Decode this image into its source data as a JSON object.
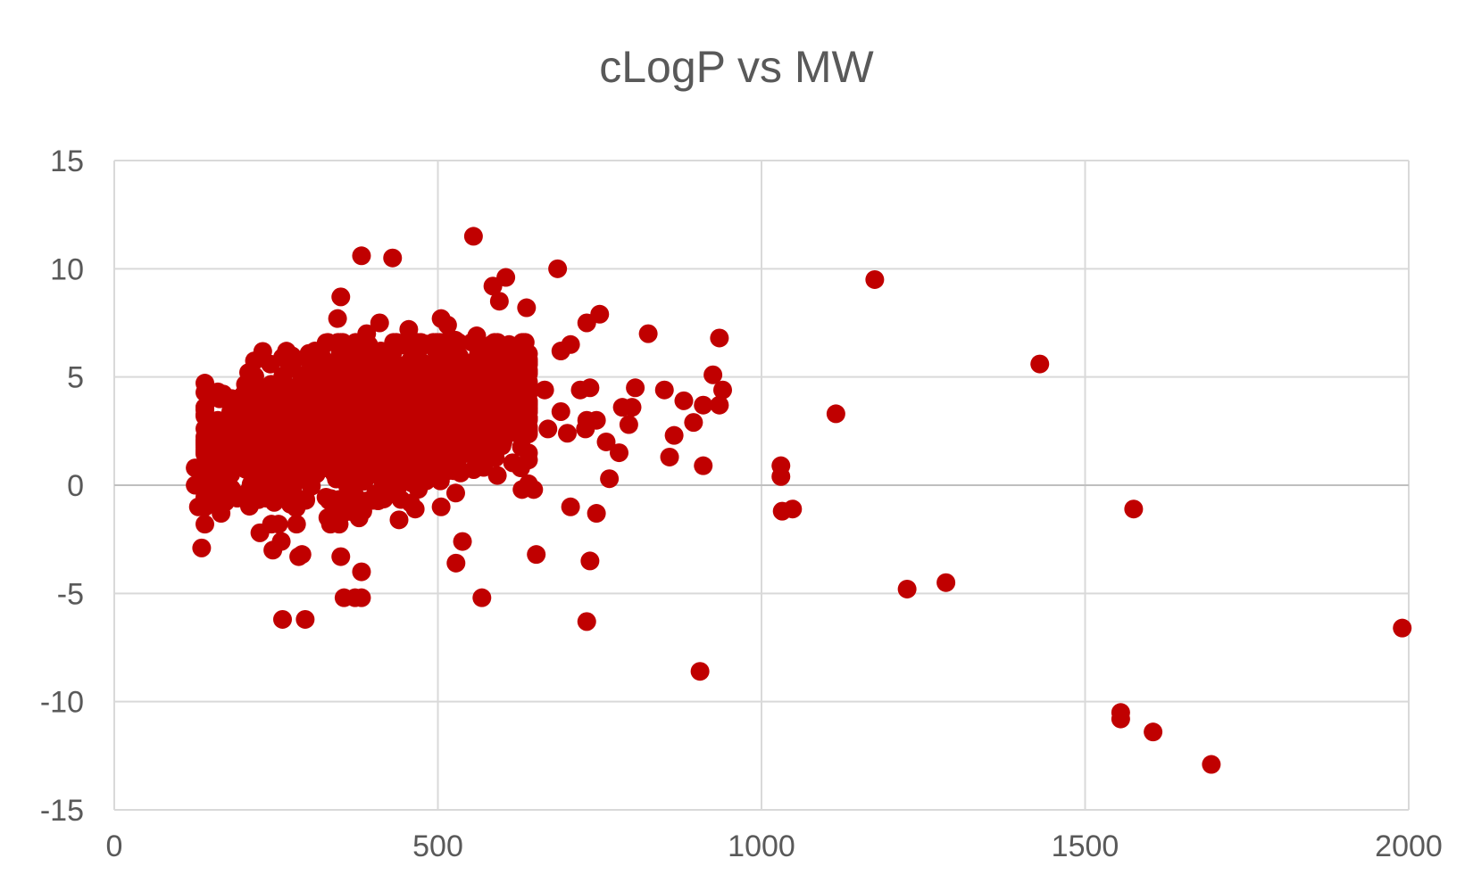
{
  "chart_data": {
    "type": "scatter",
    "title": "cLogP vs MW",
    "xlabel": "",
    "ylabel": "",
    "xlim": [
      0,
      2000
    ],
    "ylim": [
      -15,
      15
    ],
    "xticks": [
      "0",
      "500",
      "1000",
      "1500",
      "2000"
    ],
    "yticks": [
      "15",
      "10",
      "5",
      "0",
      "-5",
      "-10",
      "-15"
    ],
    "grid": true,
    "legend": "none",
    "marker_color": "#C00000",
    "series": [
      {
        "points": [
          [
            1175,
            9.5
          ],
          [
            1430,
            5.6
          ],
          [
            1115,
            3.3
          ],
          [
            1575,
            -1.1
          ],
          [
            1225,
            -4.8
          ],
          [
            1285,
            -4.5
          ],
          [
            1555,
            -10.5
          ],
          [
            1555,
            -10.8
          ],
          [
            1605,
            -11.4
          ],
          [
            1695,
            -12.9
          ],
          [
            1990,
            -6.6
          ],
          [
            905,
            -8.6
          ],
          [
            1030,
            0.9
          ],
          [
            1030,
            0.4
          ],
          [
            1032,
            -1.2
          ],
          [
            1048,
            -1.1
          ],
          [
            555,
            11.5
          ],
          [
            382,
            10.6
          ],
          [
            430,
            10.5
          ],
          [
            685,
            10.0
          ],
          [
            605,
            9.6
          ],
          [
            585,
            9.2
          ],
          [
            595,
            8.5
          ],
          [
            637,
            8.2
          ],
          [
            350,
            8.7
          ],
          [
            345,
            7.7
          ],
          [
            750,
            7.9
          ],
          [
            730,
            7.5
          ],
          [
            825,
            7.0
          ],
          [
            935,
            6.8
          ],
          [
            705,
            6.5
          ],
          [
            690,
            6.2
          ],
          [
            925,
            5.1
          ],
          [
            805,
            4.5
          ],
          [
            850,
            4.4
          ],
          [
            940,
            4.4
          ],
          [
            880,
            3.9
          ],
          [
            935,
            3.7
          ],
          [
            910,
            3.7
          ],
          [
            800,
            3.6
          ],
          [
            785,
            3.6
          ],
          [
            745,
            3.0
          ],
          [
            730,
            3.0
          ],
          [
            895,
            2.9
          ],
          [
            795,
            2.8
          ],
          [
            760,
            2.0
          ],
          [
            865,
            2.3
          ],
          [
            780,
            1.5
          ],
          [
            858,
            1.3
          ],
          [
            910,
            0.9
          ],
          [
            765,
            0.3
          ],
          [
            705,
            -1.0
          ],
          [
            745,
            -1.3
          ],
          [
            735,
            -3.5
          ],
          [
            652,
            -3.2
          ],
          [
            730,
            -6.3
          ],
          [
            568,
            -5.2
          ],
          [
            538,
            -2.6
          ],
          [
            528,
            -3.6
          ],
          [
            355,
            -5.2
          ],
          [
            372,
            -5.2
          ],
          [
            382,
            -5.2
          ],
          [
            382,
            -4.0
          ],
          [
            260,
            -6.2
          ],
          [
            295,
            -6.2
          ],
          [
            135,
            -2.9
          ],
          [
            350,
            -3.3
          ],
          [
            290,
            -3.2
          ],
          [
            285,
            -3.3
          ],
          [
            245,
            -3.0
          ],
          [
            258,
            -2.6
          ],
          [
            225,
            -2.2
          ],
          [
            505,
            -1.0
          ],
          [
            465,
            -1.1
          ],
          [
            440,
            -1.6
          ],
          [
            384,
            -1.2
          ],
          [
            330,
            -1.5
          ],
          [
            130,
            -1.0
          ],
          [
            165,
            -1.3
          ],
          [
            628,
            0.8
          ],
          [
            630,
            -0.2
          ],
          [
            648,
            -0.2
          ],
          [
            670,
            2.6
          ],
          [
            700,
            2.4
          ],
          [
            728,
            2.6
          ],
          [
            690,
            3.4
          ],
          [
            720,
            4.4
          ],
          [
            735,
            4.5
          ],
          [
            665,
            4.4
          ],
          [
            640,
            5.7
          ],
          [
            610,
            6.5
          ],
          [
            560,
            6.9
          ],
          [
            515,
            7.4
          ],
          [
            505,
            7.7
          ],
          [
            527,
            6.7
          ],
          [
            455,
            7.2
          ],
          [
            410,
            7.5
          ],
          [
            390,
            7.0
          ],
          [
            330,
            6.6
          ],
          [
            310,
            6.2
          ],
          [
            260,
            5.9
          ],
          [
            215,
            4.4
          ],
          [
            210,
            3.8
          ],
          [
            240,
            3.4
          ],
          [
            220,
            2.0
          ],
          [
            200,
            1.0
          ],
          [
            180,
            0.5
          ],
          [
            150,
            2.2
          ],
          [
            145,
            2.8
          ],
          [
            160,
            3.0
          ],
          [
            180,
            3.4
          ],
          [
            125,
            0.0
          ],
          [
            125,
            0.8
          ],
          [
            140,
            0.3
          ],
          [
            160,
            0.0
          ],
          [
            190,
            -0.6
          ],
          [
            205,
            -0.4
          ],
          [
            255,
            0.4
          ]
        ]
      }
    ],
    "dense_cluster": {
      "x_center": 400,
      "x_spread": 115,
      "y_center": 3.0,
      "y_spread": 1.55,
      "x_min": 140,
      "x_max": 640,
      "y_min": -1.8,
      "y_max": 6.6,
      "count": 1700
    }
  }
}
